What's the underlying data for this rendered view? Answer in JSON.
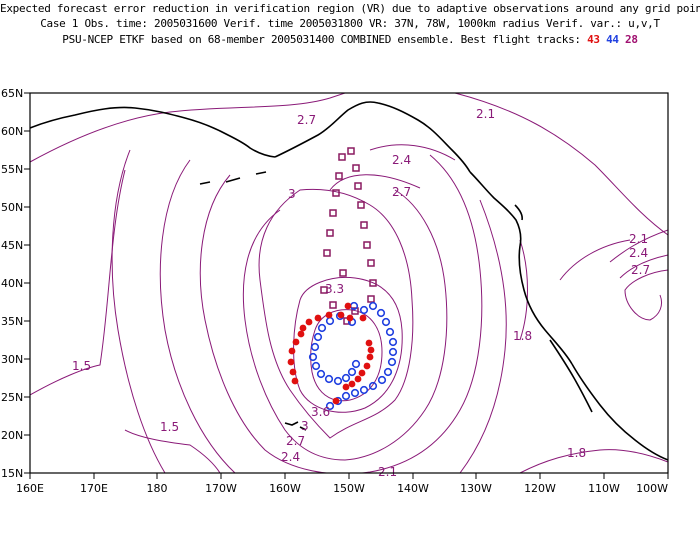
{
  "title": {
    "line1": "Expected forecast error reduction in verification region (VR) due to adaptive observations around any grid point.",
    "line2": "Case 1   Obs. time: 2005031600   Verif. time 2005031800   VR: 37N, 78W, 1000km radius   Verif. var.: u,v,T",
    "line3_prefix": "PSU-NCEP ETKF based on 68-member 2005031400 COMBINED ensemble.   Best flight tracks:",
    "track_red": "43",
    "track_blue": "44",
    "track_purple": "28"
  },
  "map": {
    "lat_labels": [
      "65N",
      "60N",
      "55N",
      "50N",
      "45N",
      "40N",
      "35N",
      "30N",
      "25N",
      "20N",
      "15N"
    ],
    "lon_labels": [
      "160E",
      "170E",
      "180",
      "170W",
      "160W",
      "150W",
      "140W",
      "130W",
      "120W",
      "110W",
      "100W"
    ],
    "contour_labels": [
      {
        "text": "2.7",
        "id": "c27a"
      },
      {
        "text": "2.1",
        "id": "c21a"
      },
      {
        "text": "2.4",
        "id": "c24a"
      },
      {
        "text": "2.7",
        "id": "c27b"
      },
      {
        "text": "3",
        "id": "c3a"
      },
      {
        "text": "2.1",
        "id": "c21b"
      },
      {
        "text": "2.4",
        "id": "c24b"
      },
      {
        "text": "2.7",
        "id": "c27c"
      },
      {
        "text": "3.3",
        "id": "c33a"
      },
      {
        "text": "1.8",
        "id": "c18a"
      },
      {
        "text": "1.5",
        "id": "c15a"
      },
      {
        "text": "1.5",
        "id": "c15b"
      },
      {
        "text": "3.6",
        "id": "c36a"
      },
      {
        "text": "3",
        "id": "c3b"
      },
      {
        "text": "2.7",
        "id": "c27d"
      },
      {
        "text": "2.4",
        "id": "c24c"
      },
      {
        "text": "2.1",
        "id": "c21c"
      },
      {
        "text": "1.8",
        "id": "c18b"
      }
    ],
    "colors": {
      "contour": "#8a1a78",
      "coast": "#000000",
      "red_track": "#e01010",
      "blue_track": "#2040e0",
      "purple_track": "#8a1a60"
    }
  }
}
